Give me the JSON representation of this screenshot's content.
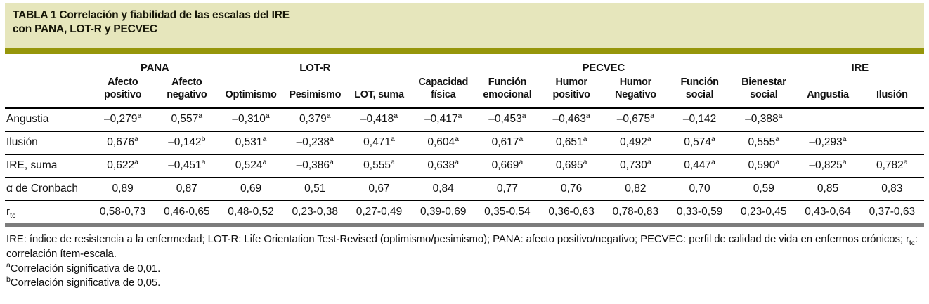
{
  "title": {
    "line1": "TABLA 1 Correlación y fiabilidad de las escalas del IRE",
    "line2": "con PANA, LOT-R y PECVEC"
  },
  "colors": {
    "band_bg": "#e6e6bc",
    "olive_rule": "#96960a",
    "row_rule": "#000000",
    "bottom_bar": "#7c7c7c"
  },
  "table": {
    "group_headers": [
      {
        "label": "",
        "span": 1
      },
      {
        "label": "PANA",
        "span": 2
      },
      {
        "label": "LOT-R",
        "span": 3
      },
      {
        "label": "PECVEC",
        "span": 6
      },
      {
        "label": "IRE",
        "span": 2
      }
    ],
    "column_headers": [
      "",
      "Afecto positivo",
      "Afecto negativo",
      "Optimismo",
      "Pesimismo",
      "LOT, suma",
      "Capacidad física",
      "Función emocional",
      "Humor positivo",
      "Humor Negativo",
      "Función social",
      "Bienestar social",
      "Angustia",
      "Ilusión"
    ],
    "rows": [
      {
        "label": "Angustia",
        "cells": [
          "–0,279^{a}",
          "0,557^{a}",
          "–0,310^{a}",
          "0,379^{a}",
          "–0,418^{a}",
          "–0,417^{a}",
          "–0,453^{a}",
          "–0,463^{a}",
          "–0,675^{a}",
          "–0,142",
          "–0,388^{a}",
          "",
          ""
        ]
      },
      {
        "label": "Ilusión",
        "cells": [
          "0,676^{a}",
          "–0,142^{b}",
          "0,531^{a}",
          "–0,238^{a}",
          "0,471^{a}",
          "0,604^{a}",
          "0,617^{a}",
          "0,651^{a}",
          "0,492^{a}",
          "0,574^{a}",
          "0,555^{a}",
          "–0,293^{a}",
          ""
        ]
      },
      {
        "label": "IRE, suma",
        "cells": [
          "0,622^{a}",
          "–0,451^{a}",
          "0,524^{a}",
          "–0,386^{a}",
          "0,555^{a}",
          "0,638^{a}",
          "0,669^{a}",
          "0,695^{a}",
          "0,730^{a}",
          "0,447^{a}",
          "0,590^{a}",
          "–0,825^{a}",
          "0,782^{a}"
        ]
      },
      {
        "label": "α de Cronbach",
        "cells": [
          "0,89",
          "0,87",
          "0,69",
          "0,51",
          "0,67",
          "0,84",
          "0,77",
          "0,76",
          "0,82",
          "0,70",
          "0,59",
          "0,85",
          "0,83"
        ]
      },
      {
        "label": "r_{tc}",
        "cells": [
          "0,58-0,73",
          "0,46-0,65",
          "0,48-0,52",
          "0,23-0,38",
          "0,27-0,49",
          "0,39-0,69",
          "0,35-0,54",
          "0,36-0,63",
          "0,78-0,83",
          "0,33-0,59",
          "0,23-0,45",
          "0,43-0,64",
          "0,37-0,63"
        ]
      }
    ]
  },
  "footnotes": [
    "IRE: índice de resistencia a la enfermedad; LOT-R: Life Orientation Test-Revised (optimismo/pesimismo); PANA: afecto positivo/negativo; PECVEC: perfil de calidad de vida en enfermos crónicos; r_{tc}: correlación ítem-escala.",
    "^{a}Correlación significativa de 0,01.",
    "^{b}Correlación significativa de 0,05."
  ]
}
